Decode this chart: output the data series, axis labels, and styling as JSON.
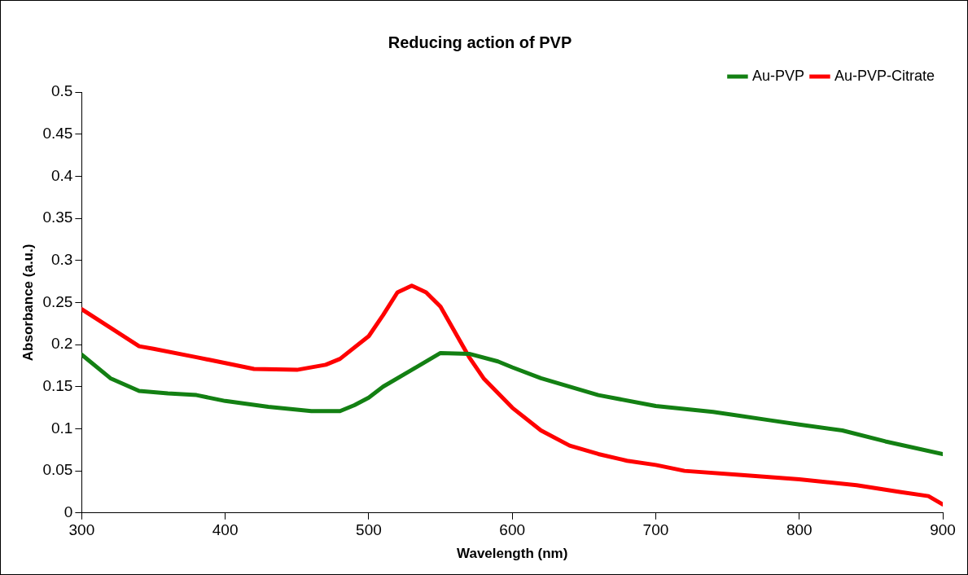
{
  "chart_data": {
    "type": "line",
    "title": "Reducing action of PVP",
    "xlabel": "Wavelength (nm)",
    "ylabel": "Absorbance (a.u.)",
    "xlim": [
      300,
      900
    ],
    "xticks": [
      300,
      400,
      500,
      600,
      700,
      800,
      900
    ],
    "ylim": [
      0,
      0.5
    ],
    "yticks": [
      0,
      0.05,
      0.1,
      0.15,
      0.2,
      0.25,
      0.3,
      0.35,
      0.4,
      0.45,
      0.5
    ],
    "grid": false,
    "legend": "top right",
    "marker": "none",
    "line_style": "solid",
    "series": [
      {
        "name": "Au-PVP",
        "color": "#138013",
        "x": [
          300,
          320,
          340,
          360,
          380,
          400,
          430,
          460,
          480,
          490,
          500,
          510,
          530,
          550,
          570,
          590,
          600,
          620,
          660,
          700,
          740,
          780,
          800,
          830,
          860,
          900
        ],
        "values": [
          0.188,
          0.16,
          0.145,
          0.142,
          0.14,
          0.133,
          0.126,
          0.121,
          0.121,
          0.128,
          0.137,
          0.15,
          0.17,
          0.19,
          0.189,
          0.18,
          0.173,
          0.16,
          0.14,
          0.127,
          0.12,
          0.11,
          0.105,
          0.098,
          0.085,
          0.07
        ]
      },
      {
        "name": "Au-PVP-Citrate",
        "color": "#ff0000",
        "x": [
          300,
          320,
          340,
          350,
          380,
          400,
          420,
          450,
          470,
          480,
          500,
          510,
          520,
          530,
          540,
          550,
          560,
          570,
          580,
          600,
          620,
          640,
          660,
          680,
          700,
          720,
          760,
          800,
          840,
          870,
          890,
          900
        ],
        "values": [
          0.242,
          0.22,
          0.198,
          0.195,
          0.185,
          0.178,
          0.171,
          0.17,
          0.176,
          0.183,
          0.21,
          0.235,
          0.262,
          0.27,
          0.262,
          0.245,
          0.215,
          0.185,
          0.16,
          0.125,
          0.098,
          0.08,
          0.07,
          0.062,
          0.057,
          0.05,
          0.045,
          0.04,
          0.033,
          0.025,
          0.02,
          0.01
        ]
      }
    ]
  }
}
